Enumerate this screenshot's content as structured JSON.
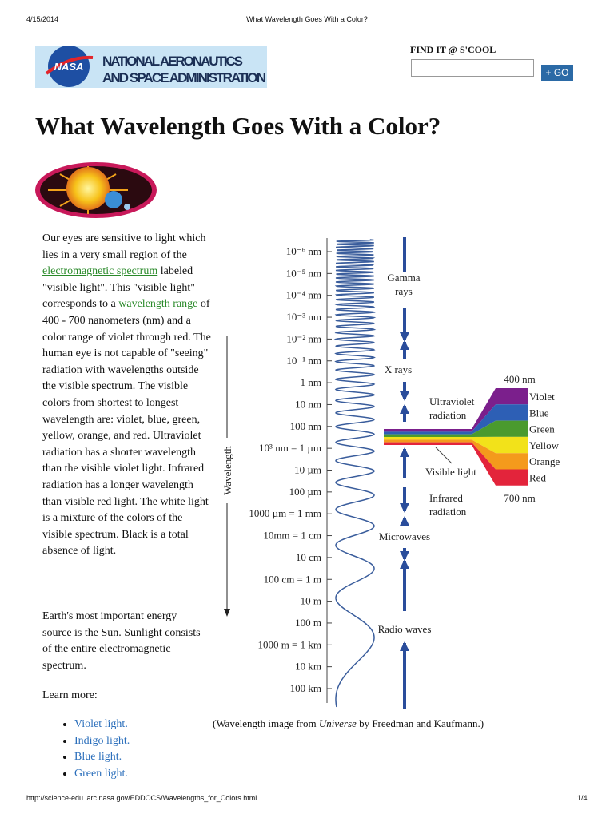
{
  "header": {
    "date": "4/15/2014",
    "title": "What Wavelength Goes With a Color?"
  },
  "logo": {
    "emblem": "NASA",
    "line1": "NATIONAL AERONAUTICS",
    "line2": "AND SPACE ADMINISTRATION"
  },
  "search": {
    "label": "FIND IT @ S'COOL",
    "button": "+ GO"
  },
  "heading": "What Wavelength Goes With a Color?",
  "intro": [
    "Our eyes are sensitive to light which lies in a very small region of the ",
    "electromagnetic spectrum",
    " labeled \"visible light\". This \"visible light\" corresponds to a ",
    "wavelength range",
    " of 400 - 700 nanometers (nm) and a color range of violet through red. The human eye is not capable of \"seeing\" radiation with wavelengths outside the visible spectrum. The visible colors from shortest to longest wavelength are: violet, blue, green, yellow, orange, and red. Ultraviolet radiation has a shorter wavelength than the visible violet light. Infrared radiation has a longer wavelength than visible red light. The white light is a mixture of the colors of the visible spectrum. Black is a total absence of light."
  ],
  "sun_text": "Earth's most important energy source is the Sun. Sunlight consists of the entire electromagnetic spectrum.",
  "learn_more": {
    "label": "Learn more:",
    "links": [
      "Violet light.",
      "Indigo light.",
      "Blue light.",
      "Green light."
    ]
  },
  "diagram": {
    "axis_label": "Wavelength",
    "ticks": [
      "10⁻⁶ nm",
      "10⁻⁵ nm",
      "10⁻⁴ nm",
      "10⁻³ nm",
      "10⁻² nm",
      "10⁻¹ nm",
      "1 nm",
      "10 nm",
      "100 nm",
      "10³ nm = 1 µm",
      "10 µm",
      "100 µm",
      "1000 µm = 1 mm",
      "10mm = 1 cm",
      "10 cm",
      "100 cm = 1 m",
      "10 m",
      "100 m",
      "1000 m = 1 km",
      "10 km",
      "100 km"
    ],
    "regions": [
      [
        "Gamma",
        "rays"
      ],
      [
        "X rays"
      ],
      [
        "Ultraviolet",
        "radiation"
      ],
      [
        "Visible light"
      ],
      [
        "Infrared",
        "radiation"
      ],
      [
        "Microwaves"
      ],
      [
        "Radio waves"
      ]
    ],
    "visible": {
      "start": "400 nm",
      "end": "700 nm",
      "colors": [
        {
          "name": "Violet",
          "color": "#7b1f8c"
        },
        {
          "name": "Blue",
          "color": "#2d5fb5"
        },
        {
          "name": "Green",
          "color": "#4a9a2e"
        },
        {
          "name": "Yellow",
          "color": "#f2e21a"
        },
        {
          "name": "Orange",
          "color": "#f49a1c"
        },
        {
          "name": "Red",
          "color": "#e3243b"
        }
      ]
    },
    "caption": [
      "(Wavelength image from ",
      "Universe",
      " by Freedman and Kaufmann.)"
    ]
  },
  "footer": {
    "url": "http://science-edu.larc.nasa.gov/EDDOCS/Wavelengths_for_Colors.html",
    "page": "1/4"
  }
}
